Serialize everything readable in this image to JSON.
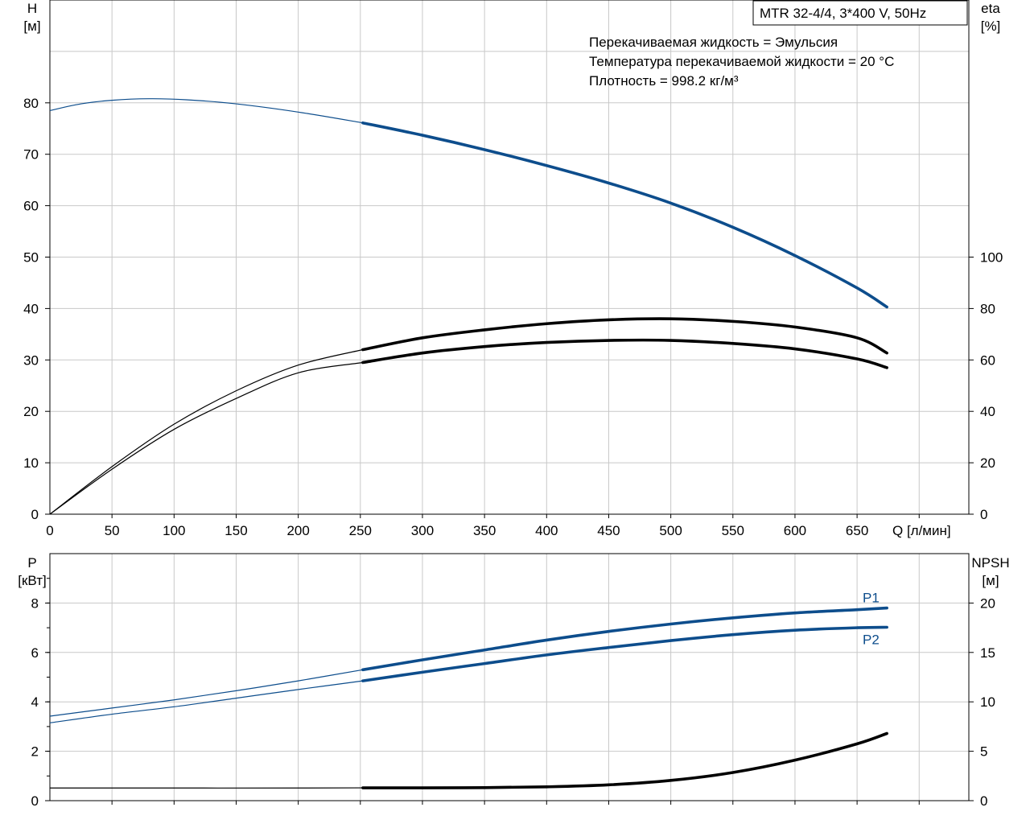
{
  "chart_data": [
    {
      "type": "line",
      "name": "head-efficiency-chart",
      "title": "MTR 32-4/4, 3*400 V, 50Hz",
      "annotations": [
        "Перекачиваемая жидкость = Эмульсия",
        "Температура перекачиваемой жидкости = 20 °C",
        "Плотность = 998.2 кг/м³"
      ],
      "xlabel": "Q [л/мин]",
      "ylabel_left": [
        "H",
        "[м]"
      ],
      "ylabel_right": [
        "eta",
        "[%]"
      ],
      "xlim": [
        0,
        740
      ],
      "ylim_left": [
        0,
        100
      ],
      "ylim_right": [
        0,
        200
      ],
      "x_ticks": [
        "0",
        "50",
        "100",
        "150",
        "200",
        "250",
        "300",
        "350",
        "400",
        "450",
        "500",
        "550",
        "600",
        "650"
      ],
      "y_ticks_left": [
        "0",
        "10",
        "20",
        "30",
        "40",
        "50",
        "60",
        "70",
        "80"
      ],
      "y_ticks_right": [
        "0",
        "20",
        "40",
        "60",
        "80",
        "100"
      ],
      "duty_range_start": 252,
      "grid": true,
      "series": [
        {
          "id": "H",
          "axis": "left",
          "color": "#0d4d8c",
          "x": [
            0,
            25,
            50,
            80,
            110,
            150,
            200,
            252,
            300,
            350,
            400,
            450,
            500,
            550,
            600,
            650,
            674
          ],
          "values": [
            78.5,
            79.8,
            80.5,
            80.8,
            80.6,
            79.8,
            78.2,
            76.1,
            73.7,
            70.9,
            67.8,
            64.4,
            60.5,
            55.8,
            50.3,
            44.0,
            40.3
          ]
        },
        {
          "id": "eta-total",
          "axis": "right",
          "color": "#000000",
          "x": [
            0,
            50,
            100,
            150,
            200,
            252,
            300,
            350,
            400,
            450,
            500,
            550,
            600,
            650,
            674
          ],
          "values": [
            0,
            17.5,
            33,
            45,
            55,
            59,
            62.7,
            65.2,
            66.8,
            67.6,
            67.6,
            66.4,
            64.3,
            60.4,
            57.0
          ]
        },
        {
          "id": "eta-pump",
          "axis": "right",
          "color": "#000000",
          "x": [
            0,
            50,
            100,
            150,
            200,
            252,
            300,
            350,
            400,
            450,
            500,
            550,
            600,
            650,
            674
          ],
          "values": [
            0,
            18.5,
            35,
            48,
            58,
            64,
            68.6,
            71.7,
            74.1,
            75.6,
            76.0,
            75.0,
            72.8,
            68.6,
            62.7
          ]
        }
      ]
    },
    {
      "type": "line",
      "name": "power-npsh-chart",
      "xlabel": "",
      "ylabel_left": [
        "P",
        "[кВт]"
      ],
      "ylabel_right": [
        "NPSH",
        "[м]"
      ],
      "xlim": [
        0,
        740
      ],
      "ylim_left": [
        0,
        10
      ],
      "ylim_right": [
        0,
        25
      ],
      "y_ticks_left": [
        "0",
        "2",
        "4",
        "6",
        "8"
      ],
      "y_ticks_right": [
        "0",
        "5",
        "10",
        "15",
        "20"
      ],
      "duty_range_start": 252,
      "grid": true,
      "series": [
        {
          "id": "P1",
          "name": "P1",
          "axis": "left",
          "color": "#0d4d8c",
          "x": [
            0,
            50,
            100,
            150,
            200,
            252,
            300,
            350,
            400,
            450,
            500,
            550,
            600,
            650,
            674
          ],
          "values": [
            3.42,
            3.75,
            4.08,
            4.45,
            4.85,
            5.3,
            5.7,
            6.1,
            6.5,
            6.85,
            7.15,
            7.4,
            7.6,
            7.73,
            7.8
          ]
        },
        {
          "id": "P2",
          "name": "P2",
          "axis": "left",
          "color": "#0d4d8c",
          "x": [
            0,
            50,
            100,
            150,
            200,
            252,
            300,
            350,
            400,
            450,
            500,
            550,
            600,
            650,
            674
          ],
          "values": [
            3.15,
            3.5,
            3.8,
            4.15,
            4.5,
            4.85,
            5.2,
            5.55,
            5.9,
            6.2,
            6.48,
            6.72,
            6.9,
            7.0,
            7.02
          ]
        },
        {
          "id": "NPSH",
          "axis": "right",
          "color": "#000000",
          "x": [
            0,
            100,
            200,
            252,
            300,
            350,
            400,
            450,
            500,
            550,
            600,
            650,
            674
          ],
          "values": [
            1.28,
            1.28,
            1.28,
            1.3,
            1.3,
            1.32,
            1.4,
            1.6,
            2.05,
            2.85,
            4.1,
            5.75,
            6.8
          ]
        }
      ]
    }
  ]
}
